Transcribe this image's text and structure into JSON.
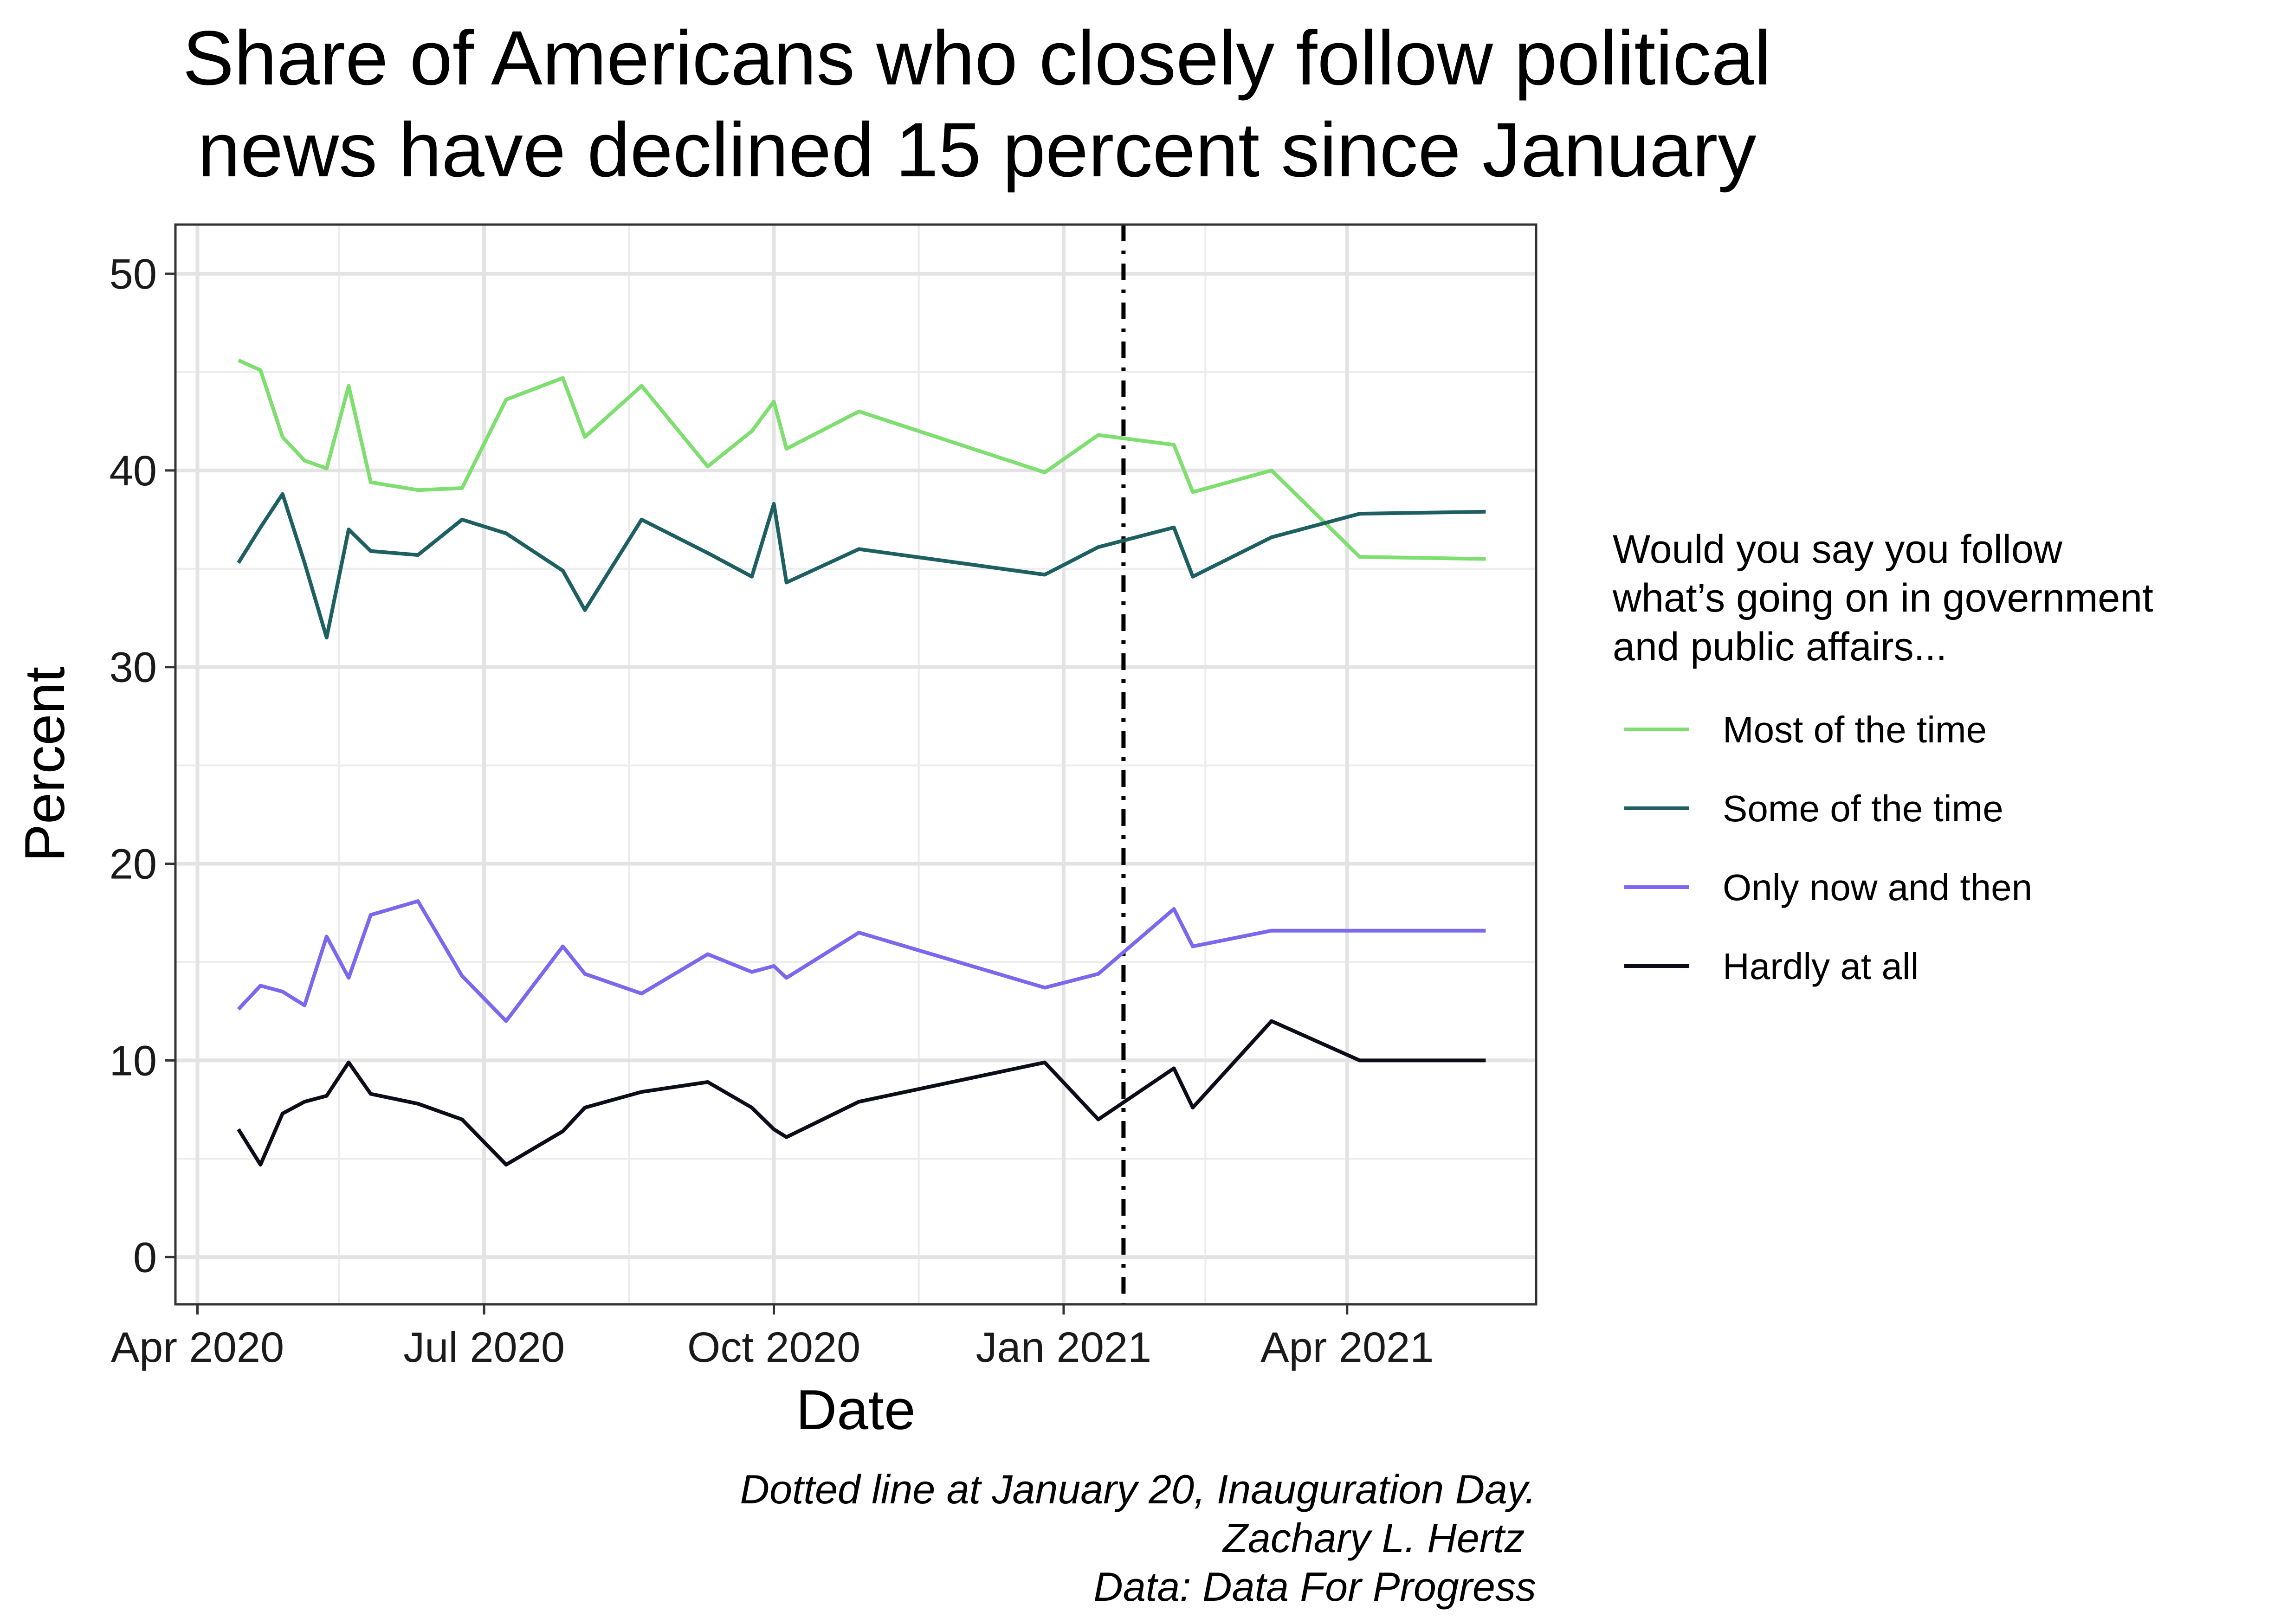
{
  "chart_data": {
    "type": "line",
    "title_lines": [
      "Share of Americans who closely follow political",
      "news have declined 15 percent since January"
    ],
    "xlabel": "Date",
    "ylabel": "Percent",
    "x_ticks": [
      {
        "date": "2020-04-01",
        "label": "Apr 2020"
      },
      {
        "date": "2020-07-01",
        "label": "Jul 2020"
      },
      {
        "date": "2020-10-01",
        "label": "Oct 2020"
      },
      {
        "date": "2021-01-01",
        "label": "Jan 2021"
      },
      {
        "date": "2021-04-01",
        "label": "Apr 2021"
      }
    ],
    "x_minor": [
      "2020-05-16",
      "2020-08-16",
      "2020-11-16",
      "2021-02-15"
    ],
    "xlim": [
      "2020-03-25",
      "2021-05-31"
    ],
    "y_ticks": [
      0,
      10,
      20,
      30,
      40,
      50
    ],
    "ylim": [
      -2.4,
      52.5
    ],
    "grid": true,
    "legend_position": "right",
    "legend_title": [
      "Would you say you follow",
      "what’s going on in government",
      "and public affairs..."
    ],
    "x": [
      "2020-04-14",
      "2020-04-21",
      "2020-04-28",
      "2020-05-05",
      "2020-05-12",
      "2020-05-19",
      "2020-05-26",
      "2020-06-10",
      "2020-06-24",
      "2020-07-08",
      "2020-07-26",
      "2020-08-02",
      "2020-08-20",
      "2020-09-10",
      "2020-09-24",
      "2020-10-01",
      "2020-10-05",
      "2020-10-28",
      "2020-12-26",
      "2021-01-12",
      "2021-02-05",
      "2021-02-11",
      "2021-03-08",
      "2021-04-05",
      "2021-05-15"
    ],
    "series": [
      {
        "name": "Most of the time",
        "color": "#7ede6f",
        "values": [
          45.6,
          45.1,
          41.7,
          40.5,
          40.1,
          44.3,
          39.4,
          39.0,
          39.1,
          43.6,
          44.7,
          41.7,
          44.3,
          40.2,
          42.0,
          43.5,
          41.1,
          43.0,
          39.9,
          41.8,
          41.3,
          38.9,
          40.0,
          35.6,
          35.5
        ]
      },
      {
        "name": "Some of the time",
        "color": "#1e6061",
        "values": [
          35.3,
          37.1,
          38.8,
          35.3,
          31.5,
          37.0,
          35.9,
          35.7,
          37.5,
          36.8,
          34.9,
          32.9,
          37.5,
          35.8,
          34.6,
          38.3,
          34.3,
          36.0,
          34.7,
          36.1,
          37.1,
          34.6,
          36.6,
          37.8,
          37.9
        ]
      },
      {
        "name": "Only now and then",
        "color": "#7b68ee",
        "values": [
          12.6,
          13.8,
          13.5,
          12.8,
          16.3,
          14.2,
          17.4,
          18.1,
          14.3,
          12.0,
          15.8,
          14.4,
          13.4,
          15.4,
          14.5,
          14.8,
          14.2,
          16.5,
          13.7,
          14.4,
          17.7,
          15.8,
          16.6,
          16.6,
          16.6
        ]
      },
      {
        "name": "Hardly at all",
        "color": "#0d0d1a",
        "values": [
          6.5,
          4.7,
          7.3,
          7.9,
          8.2,
          9.9,
          8.3,
          7.8,
          7.0,
          4.7,
          6.4,
          7.6,
          8.4,
          8.9,
          7.6,
          6.5,
          6.1,
          7.9,
          9.9,
          7.0,
          9.6,
          7.6,
          12.0,
          10.0,
          10.0
        ]
      }
    ],
    "vline": {
      "date": "2021-01-20",
      "style": "dotdash",
      "color": "#000000"
    },
    "caption_lines": [
      "Dotted line at January 20, Inauguration Day.",
      "Zachary L. Hertz ",
      "Data: Data For Progress"
    ]
  }
}
